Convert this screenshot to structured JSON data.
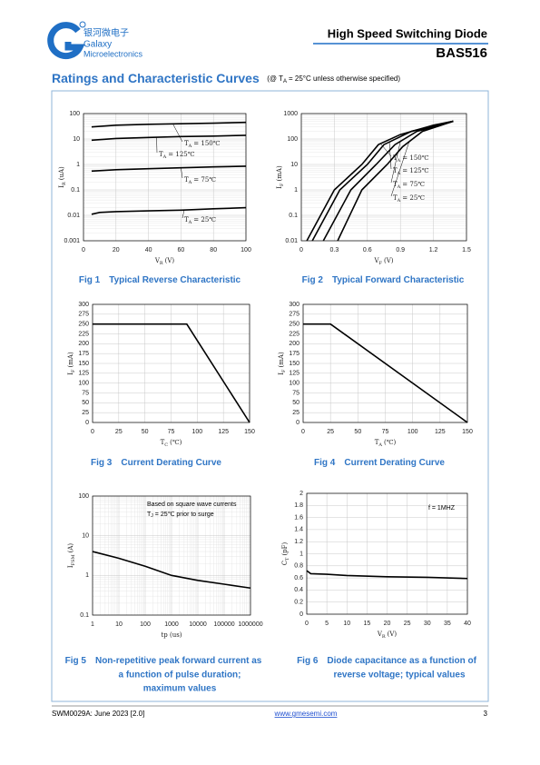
{
  "header": {
    "logo_cn": "银河微电子",
    "logo_en1": "Galaxy",
    "logo_en2": "Microelectronics",
    "title": "High Speed Switching Diode",
    "part": "BAS516"
  },
  "section": {
    "title": "Ratings and Characteristic Curves",
    "note_prefix": "(@ T",
    "note_sub": "A",
    "note_suffix": "= 25°C unless otherwise specified)"
  },
  "charts": [
    {
      "type": "line",
      "caption": {
        "fig": "Fig 1",
        "lines": [
          "Typical Reverse Characteristic"
        ]
      },
      "xlog": false,
      "ylog": true,
      "xlim": [
        0,
        100
      ],
      "xticks": [
        0,
        20,
        40,
        60,
        80,
        100
      ],
      "ylim": [
        0.001,
        100
      ],
      "yticks": [
        0.001,
        0.01,
        0.1,
        1,
        10,
        100
      ],
      "grid": true,
      "xlabel": {
        "symbol": "V",
        "sub": "R",
        "unit": "(V)"
      },
      "ylabel": {
        "symbol": "I",
        "sub": "R",
        "unit": "(uA)"
      },
      "series_label_symbol": "T",
      "series_label_sub": "A",
      "series": [
        {
          "name": "= 150℃",
          "color": "#000000",
          "x": [
            5,
            20,
            40,
            60,
            80,
            100
          ],
          "values": [
            30,
            35,
            38,
            40,
            42,
            45
          ]
        },
        {
          "name": "= 125℃",
          "color": "#000000",
          "x": [
            5,
            20,
            40,
            60,
            80,
            100
          ],
          "values": [
            9,
            10.5,
            11.5,
            12.5,
            13,
            14
          ]
        },
        {
          "name": "= 75℃",
          "color": "#000000",
          "x": [
            5,
            20,
            40,
            60,
            80,
            100
          ],
          "values": [
            0.55,
            0.62,
            0.68,
            0.74,
            0.8,
            0.85
          ]
        },
        {
          "name": "= 25℃",
          "color": "#000000",
          "x": [
            5,
            10,
            20,
            40,
            60,
            80,
            100
          ],
          "values": [
            0.011,
            0.013,
            0.014,
            0.015,
            0.016,
            0.018,
            0.02
          ]
        }
      ]
    },
    {
      "type": "line",
      "caption": {
        "fig": "Fig 2",
        "lines": [
          "Typical Forward Characteristic"
        ]
      },
      "xlog": false,
      "ylog": true,
      "xlim": [
        0,
        1.5
      ],
      "xticks": [
        0,
        0.3,
        0.6,
        0.9,
        1.2,
        1.5
      ],
      "ylim": [
        0.01,
        1000
      ],
      "yticks": [
        0.01,
        0.1,
        1,
        10,
        100,
        1000
      ],
      "grid": true,
      "xlabel": {
        "symbol": "V",
        "sub": "F",
        "unit": "(V)"
      },
      "ylabel": {
        "symbol": "I",
        "sub": "F",
        "unit": "(mA)"
      },
      "series_label_symbol": "T",
      "series_label_sub": "A",
      "series": [
        {
          "name": "= 150℃",
          "color": "#000000",
          "x": [
            0.05,
            0.3,
            0.55,
            0.7,
            0.9,
            1.2,
            1.38
          ],
          "values": [
            0.01,
            1,
            10,
            60,
            150,
            350,
            500
          ]
        },
        {
          "name": "= 125℃",
          "color": "#000000",
          "x": [
            0.1,
            0.35,
            0.6,
            0.75,
            1.0,
            1.38
          ],
          "values": [
            0.01,
            1,
            10,
            60,
            200,
            500
          ]
        },
        {
          "name": "= 75℃",
          "color": "#000000",
          "x": [
            0.2,
            0.45,
            0.68,
            0.85,
            1.05,
            1.38
          ],
          "values": [
            0.01,
            1,
            10,
            60,
            200,
            500
          ]
        },
        {
          "name": "= 25℃",
          "color": "#000000",
          "x": [
            0.33,
            0.55,
            0.78,
            0.92,
            1.1,
            1.38
          ],
          "values": [
            0.01,
            1,
            10,
            50,
            200,
            500
          ]
        }
      ]
    },
    {
      "type": "line",
      "caption": {
        "fig": "Fig 3",
        "lines": [
          "Current Derating Curve"
        ]
      },
      "xlog": false,
      "ylog": false,
      "xlim": [
        0,
        150
      ],
      "xticks": [
        0,
        25,
        50,
        75,
        100,
        125,
        150
      ],
      "ylim": [
        0,
        300
      ],
      "yticks": [
        0,
        25,
        50,
        75,
        100,
        125,
        150,
        175,
        200,
        225,
        250,
        275,
        300
      ],
      "grid": true,
      "xlabel": {
        "symbol": "T",
        "sub": "C",
        "unit": "(℃)"
      },
      "ylabel": {
        "symbol": "I",
        "sub": "F",
        "unit": "(mA)"
      },
      "series": [
        {
          "color": "#000000",
          "x": [
            0,
            90,
            150
          ],
          "values": [
            250,
            250,
            0
          ]
        }
      ]
    },
    {
      "type": "line",
      "caption": {
        "fig": "Fig 4",
        "lines": [
          "Current Derating Curve"
        ]
      },
      "xlog": false,
      "ylog": false,
      "xlim": [
        0,
        150
      ],
      "xticks": [
        0,
        25,
        50,
        75,
        100,
        125,
        150
      ],
      "ylim": [
        0,
        300
      ],
      "yticks": [
        0,
        25,
        50,
        75,
        100,
        125,
        150,
        175,
        200,
        225,
        250,
        275,
        300
      ],
      "grid": true,
      "xlabel": {
        "symbol": "T",
        "sub": "A",
        "unit": "(℃)"
      },
      "ylabel": {
        "symbol": "I",
        "sub": "F",
        "unit": "(mA)"
      },
      "series": [
        {
          "color": "#000000",
          "x": [
            0,
            25,
            150
          ],
          "values": [
            250,
            250,
            0
          ]
        }
      ]
    },
    {
      "type": "line",
      "caption": {
        "fig": "Fig 5",
        "lines": [
          "Non-repetitive peak forward current as",
          "a function of pulse duration;",
          "maximum values"
        ]
      },
      "xlog": true,
      "ylog": true,
      "xlim": [
        1,
        1000000
      ],
      "xticks": [
        1,
        10,
        100,
        1000,
        10000,
        100000,
        1000000
      ],
      "ylim": [
        0.1,
        100
      ],
      "yticks": [
        0.1,
        1,
        10,
        100
      ],
      "grid": true,
      "xlabel": {
        "symbol": "tp (us)"
      },
      "ylabel": {
        "symbol": "I",
        "sub": "FSM",
        "unit": "(A)"
      },
      "annotations": [
        "Based on square wave currents",
        {
          "symbol": "T",
          "sub": "J",
          "text": "= 25℃ prior to surge"
        }
      ],
      "series": [
        {
          "color": "#000000",
          "x": [
            1,
            10,
            100,
            1000,
            10000,
            100000,
            1000000
          ],
          "values": [
            4,
            2.7,
            1.7,
            1,
            0.75,
            0.6,
            0.48
          ]
        }
      ]
    },
    {
      "type": "line",
      "caption": {
        "fig": "Fig 6",
        "lines": [
          "Diode capacitance as a function of",
          "reverse voltage; typical values"
        ]
      },
      "xlog": false,
      "ylog": false,
      "xlim": [
        0,
        40
      ],
      "xticks": [
        0,
        5,
        10,
        15,
        20,
        25,
        30,
        35,
        40
      ],
      "ylim": [
        0,
        2
      ],
      "yticks": [
        0,
        0.2,
        0.4,
        0.6,
        0.8,
        1,
        1.2,
        1.4,
        1.6,
        1.8,
        2
      ],
      "grid": true,
      "xlabel": {
        "symbol": "V",
        "sub": "R",
        "unit": "(V)"
      },
      "ylabel": {
        "symbol": "C",
        "sub": "T",
        "unit": "(pF)"
      },
      "annotations": [
        "f = 1MHZ"
      ],
      "series": [
        {
          "color": "#000000",
          "x": [
            0,
            1,
            5,
            10,
            20,
            30,
            40
          ],
          "values": [
            0.72,
            0.67,
            0.66,
            0.64,
            0.62,
            0.61,
            0.59
          ]
        }
      ]
    }
  ],
  "footer": {
    "doc": "SWM0029A: June 2023 [2.0]",
    "url": "www.gmesemi.com",
    "page": "3"
  }
}
